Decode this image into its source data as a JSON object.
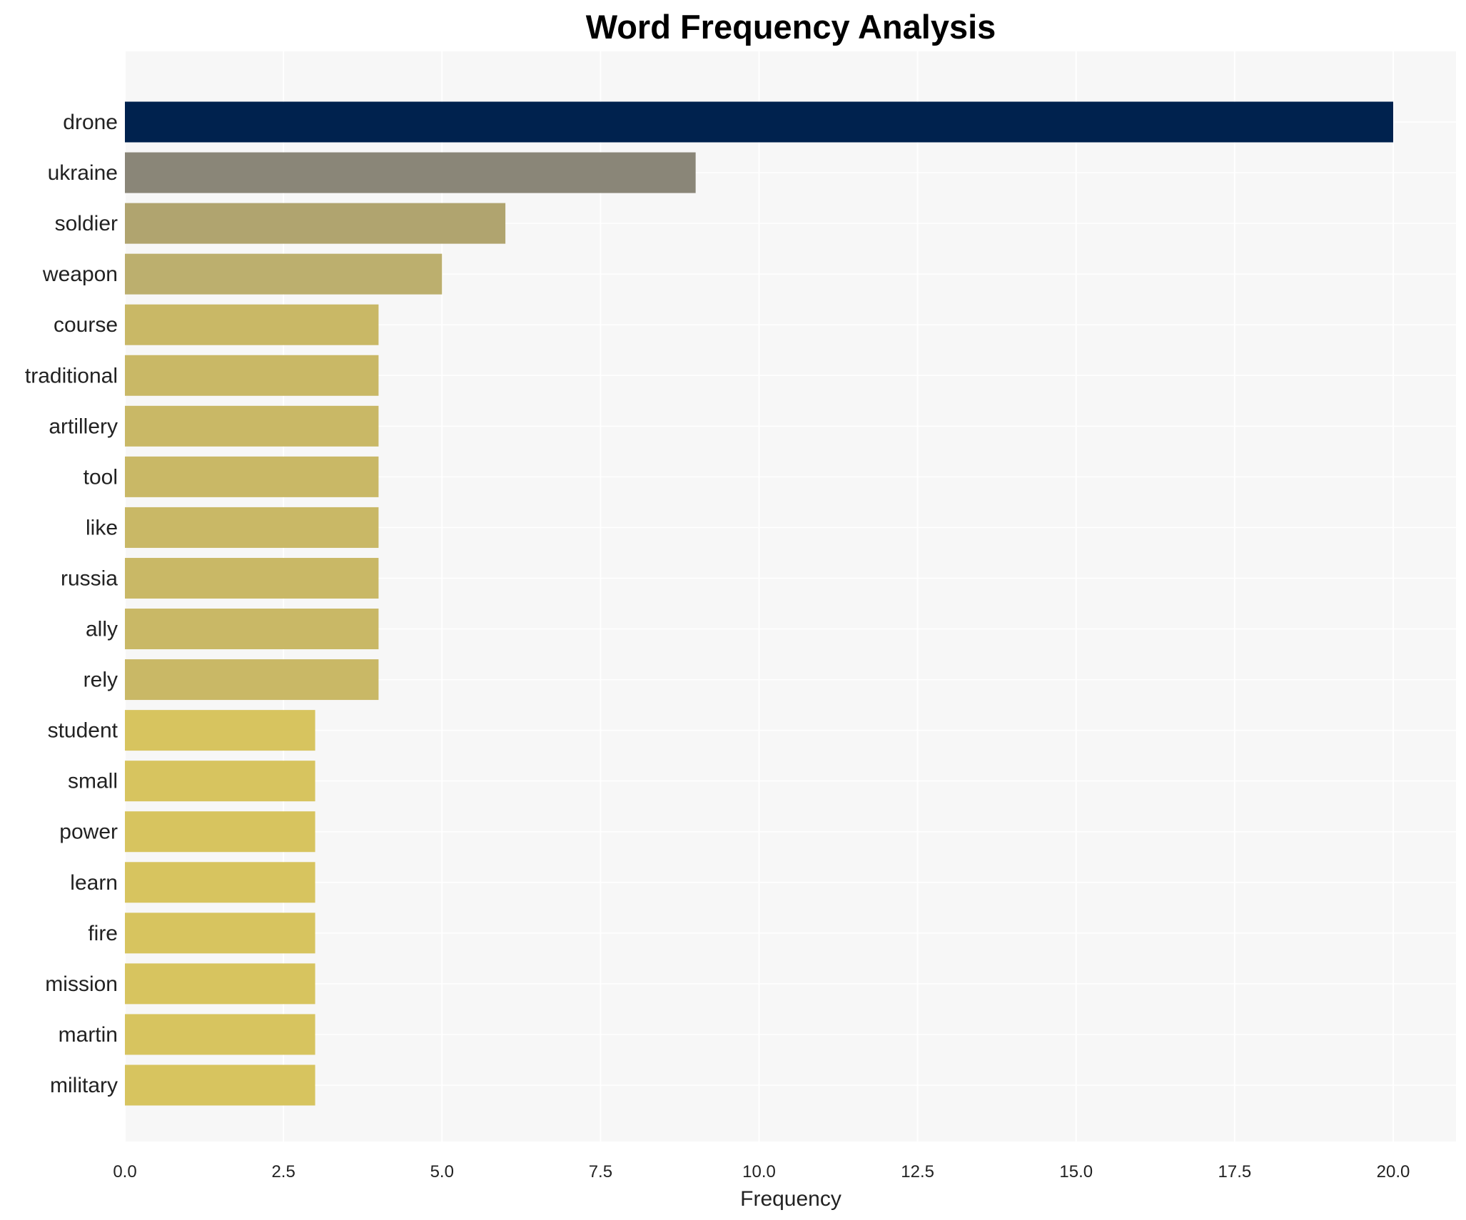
{
  "chart_data": {
    "type": "bar",
    "orientation": "horizontal",
    "title": "Word Frequency Analysis",
    "xlabel": "Frequency",
    "ylabel": "",
    "xlim": [
      0,
      21
    ],
    "xticks": [
      "0.0",
      "2.5",
      "5.0",
      "7.5",
      "10.0",
      "12.5",
      "15.0",
      "17.5",
      "20.0"
    ],
    "grid": true,
    "categories": [
      "drone",
      "ukraine",
      "soldier",
      "weapon",
      "course",
      "traditional",
      "artillery",
      "tool",
      "like",
      "russia",
      "ally",
      "rely",
      "student",
      "small",
      "power",
      "learn",
      "fire",
      "mission",
      "martin",
      "military"
    ],
    "values": [
      20,
      9,
      6,
      5,
      4,
      4,
      4,
      4,
      4,
      4,
      4,
      4,
      3,
      3,
      3,
      3,
      3,
      3,
      3,
      3
    ],
    "colors": [
      "#00224e",
      "#8a8678",
      "#b0a46f",
      "#bcaf6e",
      "#c9b866",
      "#c9b866",
      "#c9b866",
      "#c9b866",
      "#c9b866",
      "#c9b866",
      "#c9b866",
      "#c9b866",
      "#d7c45f",
      "#d7c45f",
      "#d7c45f",
      "#d7c45f",
      "#d7c45f",
      "#d7c45f",
      "#d7c45f",
      "#d7c45f"
    ],
    "background": "#f7f7f7"
  }
}
